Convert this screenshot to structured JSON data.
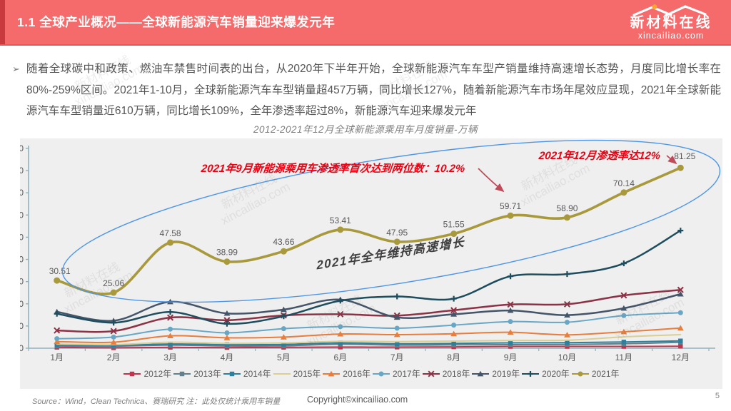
{
  "header": {
    "title": "1.1 全球产业概况——全球新能源汽车销量迎来爆发元年",
    "logo_title": "新材料在线",
    "logo_domain": "xincailiao.com"
  },
  "intro": {
    "bullet": "➢",
    "text": "随着全球碳中和政策、燃油车禁售时间表的出台，从2020年下半年开始，全球新能源汽车车型产销量维持高速增长态势，月度同比增长率在80%-259%区间。2021年1-10月，全球新能源汽车车型销量超457万辆，同比增长127%，随着新能源汽车市场年尾效应显现，2021年全球新能源汽车车型销量近610万辆，同比增长109%，全年渗透率超过8%，新能源汽车迎来爆发元年",
    "growth_rate_range": "80%-259%",
    "sales_2021_jan_oct": "457万辆",
    "yoy_jan_oct": "127%",
    "sales_2021_total": "610万辆",
    "yoy_2021": "109%",
    "penetration_2021": "8%"
  },
  "chart_data": {
    "type": "line",
    "title": "2012-2021年12月全球新能源乘用车月度销量-万辆",
    "ylabel": "万辆",
    "ylim": [
      0,
      90
    ],
    "ytick_step": 10,
    "grid": false,
    "legend_position": "bottom",
    "categories": [
      "1月",
      "2月",
      "3月",
      "4月",
      "5月",
      "6月",
      "7月",
      "8月",
      "9月",
      "10月",
      "11月",
      "12月"
    ],
    "series": [
      {
        "name": "2012年",
        "color": "#C1344D",
        "marker": "square",
        "values": [
          0.4,
          0.2,
          0.4,
          0.3,
          0.4,
          0.5,
          0.5,
          0.6,
          0.8,
          0.8,
          0.8,
          0.9
        ]
      },
      {
        "name": "2013年",
        "color": "#62808A",
        "marker": "square",
        "values": [
          1.0,
          0.9,
          1.4,
          1.0,
          1.1,
          1.8,
          1.4,
          1.5,
          1.6,
          1.7,
          2.0,
          2.7
        ]
      },
      {
        "name": "2014年",
        "color": "#2E7F9B",
        "marker": "square",
        "values": [
          1.4,
          1.3,
          1.9,
          1.6,
          1.7,
          2.4,
          2.0,
          2.2,
          2.4,
          2.5,
          2.8,
          3.3
        ]
      },
      {
        "name": "2015年",
        "color": "#DACE92",
        "marker": "none",
        "values": [
          1.9,
          1.6,
          2.7,
          2.2,
          2.4,
          3.1,
          3.0,
          3.2,
          3.5,
          3.6,
          5.1,
          6.1
        ]
      },
      {
        "name": "2016年",
        "color": "#E87E3D",
        "marker": "triangle",
        "values": [
          3.0,
          2.7,
          5.6,
          4.7,
          5.0,
          6.4,
          6.1,
          6.5,
          7.2,
          6.0,
          7.4,
          9.1
        ]
      },
      {
        "name": "2017年",
        "color": "#67A7C5",
        "marker": "circle",
        "values": [
          4.3,
          5.0,
          8.6,
          6.9,
          8.8,
          9.7,
          9.0,
          10.4,
          12.0,
          11.7,
          14.7,
          16.0
        ]
      },
      {
        "name": "2018年",
        "color": "#8C3246",
        "marker": "x",
        "values": [
          8.0,
          7.7,
          13.8,
          12.6,
          14.8,
          15.3,
          14.7,
          17.1,
          19.7,
          19.8,
          23.8,
          26.3
        ]
      },
      {
        "name": "2019年",
        "color": "#455569",
        "marker": "triangle",
        "values": [
          16.4,
          12.4,
          20.9,
          15.7,
          17.4,
          21.9,
          13.9,
          15.3,
          17.0,
          14.9,
          18.0,
          24.4
        ]
      },
      {
        "name": "2020年",
        "color": "#1E4D5E",
        "marker": "plus",
        "values": [
          15.5,
          11.5,
          16.3,
          11.0,
          14.4,
          21.4,
          23.3,
          22.3,
          32.4,
          33.4,
          38.2,
          53.0
        ]
      },
      {
        "name": "2021年",
        "color": "#A9993D",
        "marker": "circle",
        "show_labels": true,
        "values": [
          30.51,
          25.06,
          47.58,
          38.99,
          43.66,
          53.41,
          47.95,
          51.55,
          59.71,
          58.9,
          70.14,
          81.25
        ]
      }
    ],
    "annotations": {
      "note1": "2021年9月新能源乘用车渗透率首次达到两位数：10.2%",
      "note2": "2021年12月渗透率达12%",
      "growth_label": "2021年全年维持高速增长"
    }
  },
  "footer": {
    "source": "Source：Wind，Clean Technica、赛瑞研究  注：此处仅统计乘用车销量",
    "copyright": "Copyright©xincailiao.com",
    "page": "5"
  },
  "watermark": {
    "line1": "新材料在线",
    "line2": "xincailiao.com"
  },
  "colors": {
    "header_bg": "#F56A6B",
    "annotation_red": "#EC0011",
    "ellipse_blue": "#4D96E8",
    "arrow": "#BE4B5A",
    "axis": "#8FB2BE",
    "tick_label": "#595959",
    "panel_bg": "#EFEFEF"
  }
}
